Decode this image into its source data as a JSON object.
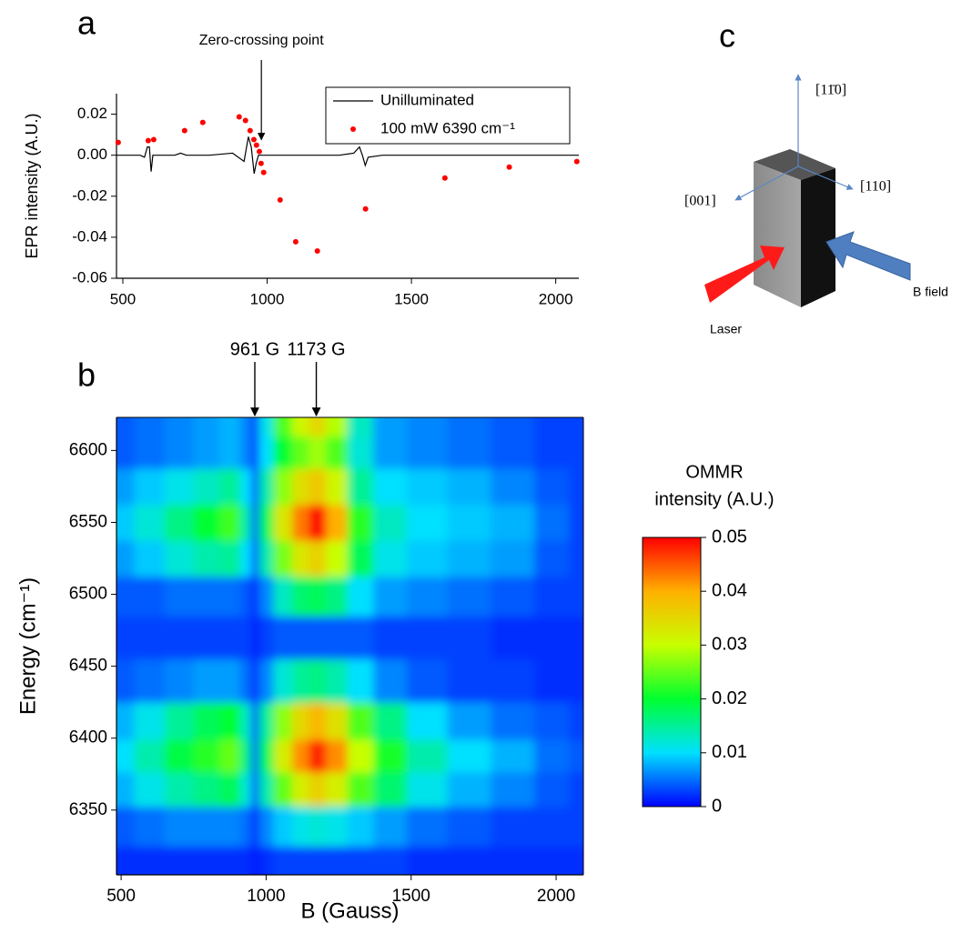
{
  "chart_data": [
    {
      "type": "line",
      "panel_label": "a",
      "ylabel": "EPR intensity (A.U.)",
      "xlim": [
        478,
        2080
      ],
      "xticks": [
        500,
        1000,
        1500,
        2000
      ],
      "ylim": [
        -0.06,
        0.03
      ],
      "yticks": [
        -0.06,
        -0.04,
        -0.02,
        {
          "value": 0,
          "label": "0.00"
        },
        0.02
      ],
      "legend": "upper right",
      "annotations": [
        {
          "text": "Zero-crossing point",
          "x": 980
        }
      ],
      "series": [
        {
          "name": "Unilluminated",
          "type": "line",
          "color": "#000000",
          "x": [
            478,
            560,
            575,
            585,
            592,
            598,
            604,
            620,
            680,
            700,
            720,
            800,
            880,
            920,
            935,
            945,
            955,
            962,
            970,
            990,
            1050,
            1150,
            1250,
            1300,
            1320,
            1330,
            1340,
            1350,
            1400,
            1500,
            1700,
            1900,
            2080
          ],
          "values": [
            0,
            0,
            -0.001,
            0.004,
            0.004,
            -0.008,
            0,
            0,
            0,
            0.001,
            0,
            0,
            0.001,
            -0.003,
            0.009,
            0.004,
            -0.009,
            -0.004,
            0,
            0,
            0,
            0,
            0,
            0.001,
            0.004,
            0,
            -0.005,
            -0.001,
            0,
            0,
            0,
            0,
            0
          ]
        },
        {
          "name": "100 mW 6390 cm⁻¹",
          "type": "scatter",
          "color": "#ff0000",
          "x": [
            484,
            588,
            607,
            714,
            777,
            903,
            925,
            941,
            954,
            963,
            973,
            979,
            988,
            1045,
            1099,
            1174,
            1341,
            1616,
            1839,
            2073
          ],
          "values": [
            0.0062,
            0.0071,
            0.0076,
            0.012,
            0.016,
            0.0187,
            0.0169,
            0.012,
            0.0076,
            0.0049,
            0.0018,
            -0.004,
            -0.0084,
            -0.0218,
            -0.0422,
            -0.0467,
            -0.0262,
            -0.0111,
            -0.0058,
            -0.0031
          ]
        }
      ]
    },
    {
      "type": "heatmap",
      "panel_label": "b",
      "xlabel": "B (Gauss)",
      "ylabel": "Energy (cm⁻¹)",
      "xlim": [
        484,
        2094
      ],
      "xticks": [
        500,
        1000,
        1500,
        2000
      ],
      "ylim": [
        6305,
        6623
      ],
      "yticks": [
        6350,
        6400,
        6450,
        6500,
        6550,
        6600
      ],
      "annotations": [
        {
          "text": "961 G",
          "x": 961
        },
        {
          "text": "1173 G",
          "x": 1173
        }
      ],
      "x": [
        490,
        600,
        700,
        800,
        880,
        940,
        961,
        990,
        1060,
        1120,
        1173,
        1240,
        1320,
        1420,
        1550,
        1700,
        1850,
        2000,
        2090
      ],
      "y": [
        6310,
        6340,
        6365,
        6388,
        6410,
        6440,
        6470,
        6500,
        6525,
        6550,
        6575,
        6600,
        6620
      ],
      "z": [
        [
          0.002,
          0.002,
          0.002,
          0.002,
          0.002,
          0.002,
          0.001,
          0.002,
          0.003,
          0.003,
          0.003,
          0.003,
          0.003,
          0.003,
          0.002,
          0.002,
          0.002,
          0.002,
          0.002
        ],
        [
          0.004,
          0.005,
          0.006,
          0.006,
          0.006,
          0.005,
          0.001,
          0.006,
          0.009,
          0.011,
          0.012,
          0.011,
          0.009,
          0.007,
          0.005,
          0.004,
          0.003,
          0.003,
          0.003
        ],
        [
          0.008,
          0.011,
          0.014,
          0.016,
          0.018,
          0.012,
          0.002,
          0.014,
          0.025,
          0.032,
          0.036,
          0.032,
          0.024,
          0.017,
          0.011,
          0.008,
          0.006,
          0.004,
          0.003
        ],
        [
          0.01,
          0.014,
          0.019,
          0.022,
          0.025,
          0.016,
          0.002,
          0.018,
          0.032,
          0.042,
          0.048,
          0.042,
          0.03,
          0.021,
          0.014,
          0.01,
          0.008,
          0.005,
          0.004
        ],
        [
          0.008,
          0.011,
          0.015,
          0.018,
          0.02,
          0.013,
          0.002,
          0.015,
          0.027,
          0.035,
          0.039,
          0.034,
          0.024,
          0.016,
          0.01,
          0.007,
          0.005,
          0.004,
          0.003
        ],
        [
          0.004,
          0.005,
          0.006,
          0.007,
          0.007,
          0.005,
          0.001,
          0.006,
          0.012,
          0.015,
          0.016,
          0.014,
          0.01,
          0.006,
          0.004,
          0.003,
          0.003,
          0.002,
          0.002
        ],
        [
          0.003,
          0.003,
          0.003,
          0.003,
          0.003,
          0.003,
          0.001,
          0.003,
          0.004,
          0.004,
          0.004,
          0.004,
          0.004,
          0.003,
          0.003,
          0.003,
          0.002,
          0.002,
          0.002
        ],
        [
          0.004,
          0.004,
          0.005,
          0.005,
          0.005,
          0.004,
          0.001,
          0.006,
          0.013,
          0.017,
          0.018,
          0.016,
          0.01,
          0.007,
          0.006,
          0.005,
          0.004,
          0.003,
          0.003
        ],
        [
          0.007,
          0.009,
          0.012,
          0.014,
          0.015,
          0.01,
          0.002,
          0.014,
          0.026,
          0.033,
          0.036,
          0.03,
          0.018,
          0.011,
          0.009,
          0.008,
          0.007,
          0.004,
          0.003
        ],
        [
          0.009,
          0.012,
          0.016,
          0.02,
          0.023,
          0.014,
          0.002,
          0.018,
          0.033,
          0.043,
          0.05,
          0.04,
          0.022,
          0.013,
          0.01,
          0.009,
          0.008,
          0.005,
          0.003
        ],
        [
          0.007,
          0.009,
          0.011,
          0.013,
          0.015,
          0.01,
          0.002,
          0.014,
          0.027,
          0.034,
          0.037,
          0.031,
          0.015,
          0.01,
          0.009,
          0.008,
          0.006,
          0.004,
          0.003
        ],
        [
          0.004,
          0.005,
          0.006,
          0.007,
          0.008,
          0.006,
          0.001,
          0.01,
          0.02,
          0.025,
          0.028,
          0.024,
          0.012,
          0.007,
          0.006,
          0.005,
          0.004,
          0.003,
          0.003
        ],
        [
          0.004,
          0.005,
          0.006,
          0.007,
          0.008,
          0.006,
          0.001,
          0.011,
          0.024,
          0.031,
          0.035,
          0.029,
          0.013,
          0.007,
          0.006,
          0.005,
          0.004,
          0.003,
          0.003
        ]
      ],
      "colorbar": {
        "label": [
          "OMMR",
          "intensity (A.U.)"
        ],
        "zlim": [
          0,
          0.05
        ],
        "ticks": [
          0,
          0.01,
          0.02,
          0.03,
          0.04,
          0.05
        ],
        "colormap": [
          "#0000ff",
          "#00e0ff",
          "#00ff30",
          "#c8ff00",
          "#ffb000",
          "#ff0000"
        ]
      }
    }
  ],
  "diagram": {
    "label": "c",
    "axes": [
      "[11̄0]",
      "[001]",
      "[110]"
    ],
    "laser": "Laser",
    "field": "B field"
  }
}
